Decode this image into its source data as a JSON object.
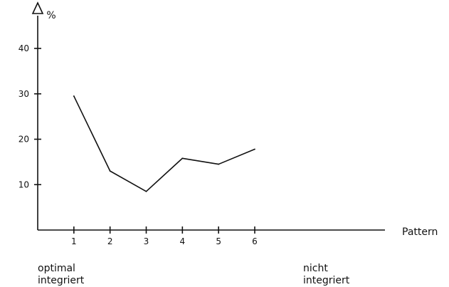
{
  "chart_data": {
    "type": "line",
    "title": "",
    "xlabel": "Pattern",
    "ylabel": "%",
    "x": [
      1,
      2,
      3,
      4,
      5,
      6
    ],
    "series": [
      {
        "values": [
          29.5,
          13,
          8.5,
          15.8,
          14.5,
          17.8
        ]
      }
    ],
    "xlim": [
      0,
      9.6
    ],
    "ylim": [
      0,
      48
    ],
    "x_ticks": [
      "1",
      "2",
      "3",
      "4",
      "5",
      "6"
    ],
    "y_ticks": [
      "10",
      "20",
      "30",
      "40"
    ],
    "y_tick_values": [
      10,
      20,
      30,
      40
    ],
    "annotations": {
      "left_line1": "optimal",
      "left_line2": "integriert",
      "right_line1": "nicht",
      "right_line2": "integriert"
    },
    "grid": false,
    "legend": "none",
    "colors": {
      "line": "#111111",
      "axis": "#111111"
    }
  }
}
